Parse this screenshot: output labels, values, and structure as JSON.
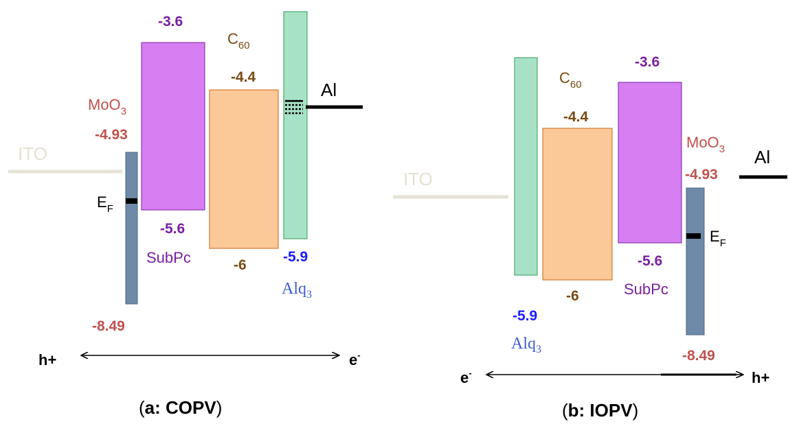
{
  "panel_a": {
    "caption_open": "(",
    "caption_bold": "a: COPV",
    "caption_close": ")",
    "ito": "ITO",
    "al": "Al",
    "moo3": "MoO",
    "moo3_sub": "3",
    "moo3_top": "-4.93",
    "moo3_bottom": "-8.49",
    "ef": "E",
    "ef_sub": "F",
    "subpc_top": "-3.6",
    "subpc_bottom": "-5.6",
    "subpc": "SubPc",
    "c60": "C",
    "c60_sub": "60",
    "c60_top": "-4.4",
    "c60_bottom": "-6",
    "alq3": "Alq",
    "alq3_sub": "3",
    "alq3_bottom": "-5.9",
    "left_carrier": "h+",
    "right_carrier": "e",
    "right_carrier_sup": "-"
  },
  "panel_b": {
    "caption_open": "(",
    "caption_bold": "b: IOPV",
    "caption_close": ")",
    "ito": "ITO",
    "al": "Al",
    "moo3": "MoO",
    "moo3_sub": "3",
    "moo3_top": "-4.93",
    "moo3_bottom": "-8.49",
    "ef": "E",
    "ef_sub": "F",
    "subpc_top": "-3.6",
    "subpc_bottom": "-5.6",
    "subpc": "SubPc",
    "c60": "C",
    "c60_sub": "60",
    "c60_top": "-4.4",
    "c60_bottom": "-6",
    "alq3": "Alq",
    "alq3_sub": "3",
    "alq3_bottom": "-5.9",
    "left_carrier": "e",
    "left_carrier_sup": "-",
    "right_carrier": "h+"
  },
  "colors": {
    "moo3_bar": "#6e8aa8",
    "subpc_bar": "#d77ef2",
    "c60_bar": "#fbc998",
    "alq3_bar": "#a8e2c6",
    "ito_line": "#e6e3d6",
    "moo3_text": "#c0504d",
    "subpc_text": "#7a1fa2",
    "c60_text": "#7a4a12",
    "alq3_text": "#1a1aff",
    "alq3_label": "#3d5bd0"
  }
}
